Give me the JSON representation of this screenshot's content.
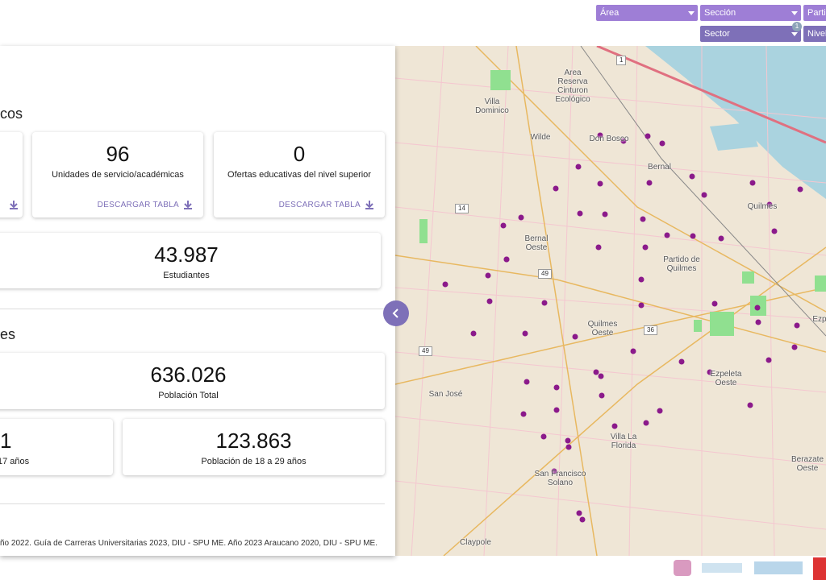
{
  "filters": {
    "area": "Área",
    "seccion": "Sección",
    "partido": "Partic",
    "sector": "Sector",
    "sector_badge": "1",
    "nivel": "Nivel"
  },
  "panel": {
    "heading_1": "cos",
    "heading_2": "es",
    "cards": [
      {
        "value": "96",
        "label": "Unidades de servicio/académicas",
        "action": "DESCARGAR TABLA"
      },
      {
        "value": "0",
        "label": "Ofertas educativas del nivel superior",
        "action": "DESCARGAR TABLA"
      },
      {
        "value": "43.987",
        "label": "Estudiantes"
      },
      {
        "value": "636.026",
        "label": "Población Total"
      },
      {
        "value": "1",
        "label": "17 años"
      },
      {
        "value": "123.863",
        "label": "Población de 18 a 29 años"
      }
    ],
    "footer": "ño 2022. Guía de Carreras Universitarias 2023, DIU - SPU ME. Año 2023 Araucano 2020, DIU - SPU ME."
  },
  "map": {
    "labels": [
      "Area Reserva Cinturon Ecológico",
      "Villa Dominico",
      "Wilde",
      "Don Bosco",
      "Bernal",
      "Bernal Oeste",
      "Quilmes",
      "Partido de Quilmes",
      "Quilmes Oeste",
      "Ezpeleta Oeste",
      "San José",
      "Villa La Florida",
      "San Francisco Solano",
      "Claypole",
      "Berazate Oeste",
      "Ezp"
    ],
    "shields": [
      "1",
      "14",
      "49",
      "36",
      "49"
    ]
  }
}
